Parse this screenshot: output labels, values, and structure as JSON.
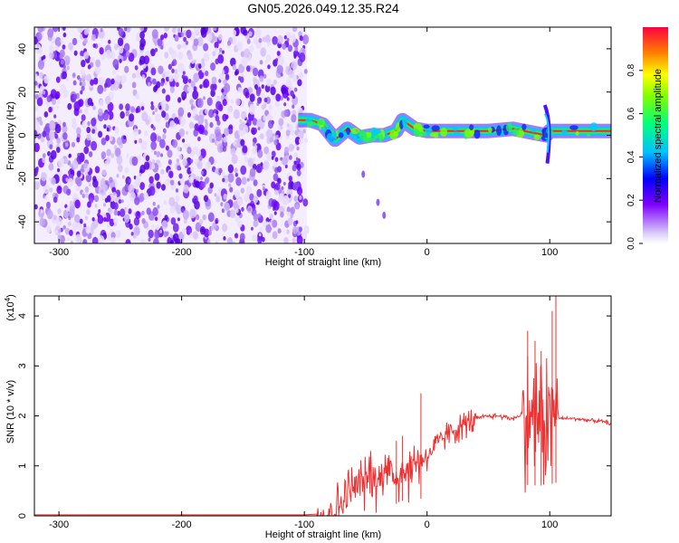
{
  "page": {
    "title": "GN05.2026.049.12.35.R24"
  },
  "chart_data": [
    {
      "type": "heatmap",
      "title": "GN05.2026.049.12.35.R24",
      "xlabel": "Height of straight line (km)",
      "ylabel": "Frequency (Hz)",
      "xlim": [
        -320,
        150
      ],
      "ylim": [
        -50,
        50
      ],
      "x_ticks": [
        -300,
        -200,
        -100,
        0,
        100
      ],
      "y_ticks": [
        -40,
        -20,
        0,
        20,
        40
      ],
      "colormap": [
        "#d8c8f8",
        "#7f00ff",
        "#0000ff",
        "#00bfff",
        "#00ff80",
        "#ffff00",
        "#ff8000",
        "#ff0040"
      ],
      "colorbar": {
        "label": "Normalized spectral amplitude",
        "range": [
          0,
          1
        ],
        "ticks": [
          0.0,
          0.2,
          0.4,
          0.6,
          0.8
        ]
      },
      "regions": [
        {
          "description": "broadband noise",
          "x": [
            -320,
            -98
          ],
          "y": [
            -50,
            50
          ],
          "amplitude": 0.1
        },
        {
          "description": "carrier band",
          "x": [
            -105,
            150
          ],
          "y_center_km": [
            [
              -105,
              7
            ],
            [
              -95,
              7
            ],
            [
              -85,
              5
            ],
            [
              -75,
              -2
            ],
            [
              -65,
              3
            ],
            [
              -55,
              -1
            ],
            [
              -45,
              0
            ],
            [
              -35,
              0
            ],
            [
              -25,
              2
            ],
            [
              -20,
              7
            ],
            [
              -10,
              3
            ],
            [
              0,
              2
            ],
            [
              20,
              2
            ],
            [
              50,
              2
            ],
            [
              70,
              3
            ],
            [
              97,
              0
            ],
            [
              100,
              2
            ],
            [
              150,
              2
            ]
          ],
          "amplitude": 0.6
        },
        {
          "description": "streak",
          "points": [
            [
              -52,
              -18
            ],
            [
              -40,
              -31
            ],
            [
              -35,
              -37
            ]
          ],
          "amplitude": 0.1
        }
      ]
    },
    {
      "type": "line",
      "xlabel": "Height of straight line (km)",
      "ylabel": "SNR (10 * v/v)",
      "y_multiplier": "(x10",
      "y_multiplier_exp": "4",
      "xlim": [
        -320,
        150
      ],
      "ylim": [
        0,
        4.4
      ],
      "x_ticks": [
        -300,
        -200,
        -100,
        0,
        100
      ],
      "y_ticks": [
        0,
        1,
        2,
        3,
        4
      ],
      "line_color": "#ee3030",
      "series": [
        {
          "x": [
            -320,
            -100,
            -80,
            -70,
            -60,
            -50,
            -45,
            -40,
            -35,
            -30,
            -25,
            -20,
            -15,
            -10,
            0,
            10,
            20,
            30,
            40,
            50,
            60,
            70,
            75,
            80,
            85,
            90,
            95,
            100,
            105,
            108,
            110,
            120,
            130,
            140,
            150
          ],
          "y": [
            0.02,
            0.02,
            0.05,
            0.25,
            0.6,
            0.7,
            1.0,
            0.6,
            1.1,
            0.9,
            0.8,
            1.0,
            0.9,
            1.1,
            1.2,
            1.5,
            1.7,
            1.85,
            1.95,
            2.0,
            2.0,
            1.95,
            2.0,
            2.1,
            2.0,
            2.05,
            2.0,
            2.1,
            2.2,
            1.95,
            1.95,
            1.95,
            1.92,
            1.9,
            1.85
          ],
          "spikes": [
            {
              "x": -25,
              "y": 1.5
            },
            {
              "x": -20,
              "y": 1.6
            },
            {
              "x": -5,
              "y": 2.45
            },
            {
              "x": 82,
              "y": 3.7
            },
            {
              "x": 88,
              "y": 3.5
            },
            {
              "x": 93,
              "y": 3.3
            },
            {
              "x": 102,
              "y": 4.1
            },
            {
              "x": 105,
              "y": 4.4
            }
          ]
        }
      ]
    }
  ]
}
